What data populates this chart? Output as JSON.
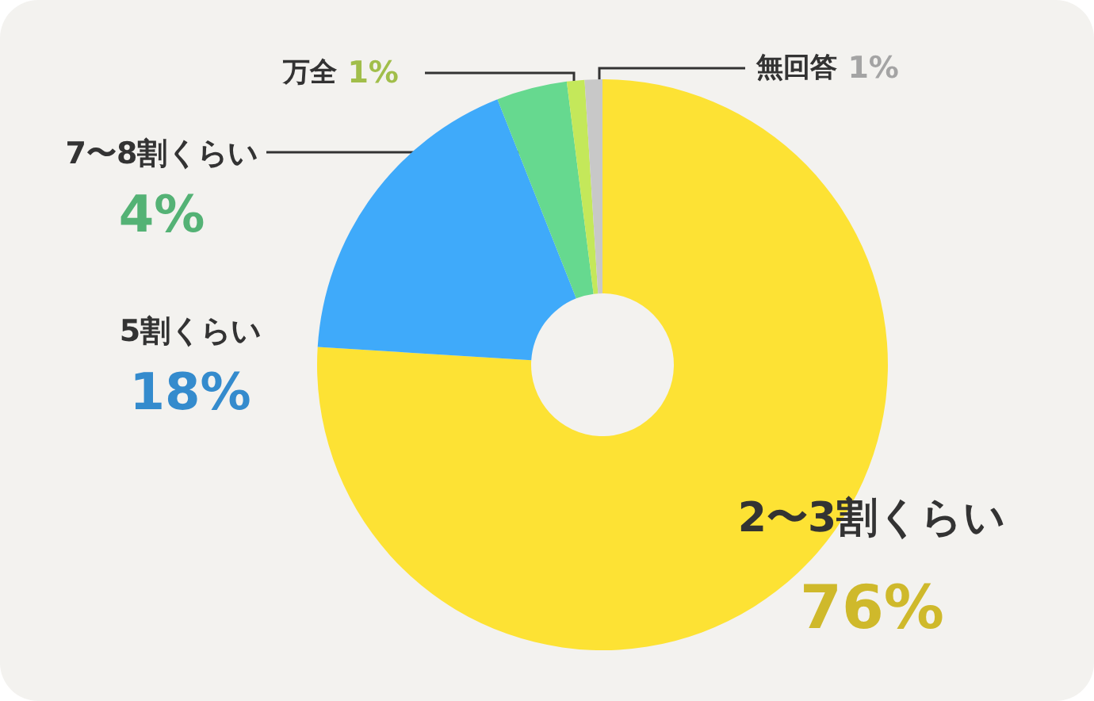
{
  "chart_data": {
    "type": "donut",
    "categories": [
      "2〜3割くらい",
      "5割くらい",
      "7〜8割くらい",
      "万全",
      "無回答"
    ],
    "values": [
      76,
      18,
      4,
      1,
      1
    ],
    "colors": [
      "#fde234",
      "#3faafa",
      "#66d98f",
      "#c4e85a",
      "#c8c8c8"
    ],
    "value_labels": [
      "76%",
      "18%",
      "4%",
      "1%",
      "1%"
    ],
    "legend": false
  }
}
